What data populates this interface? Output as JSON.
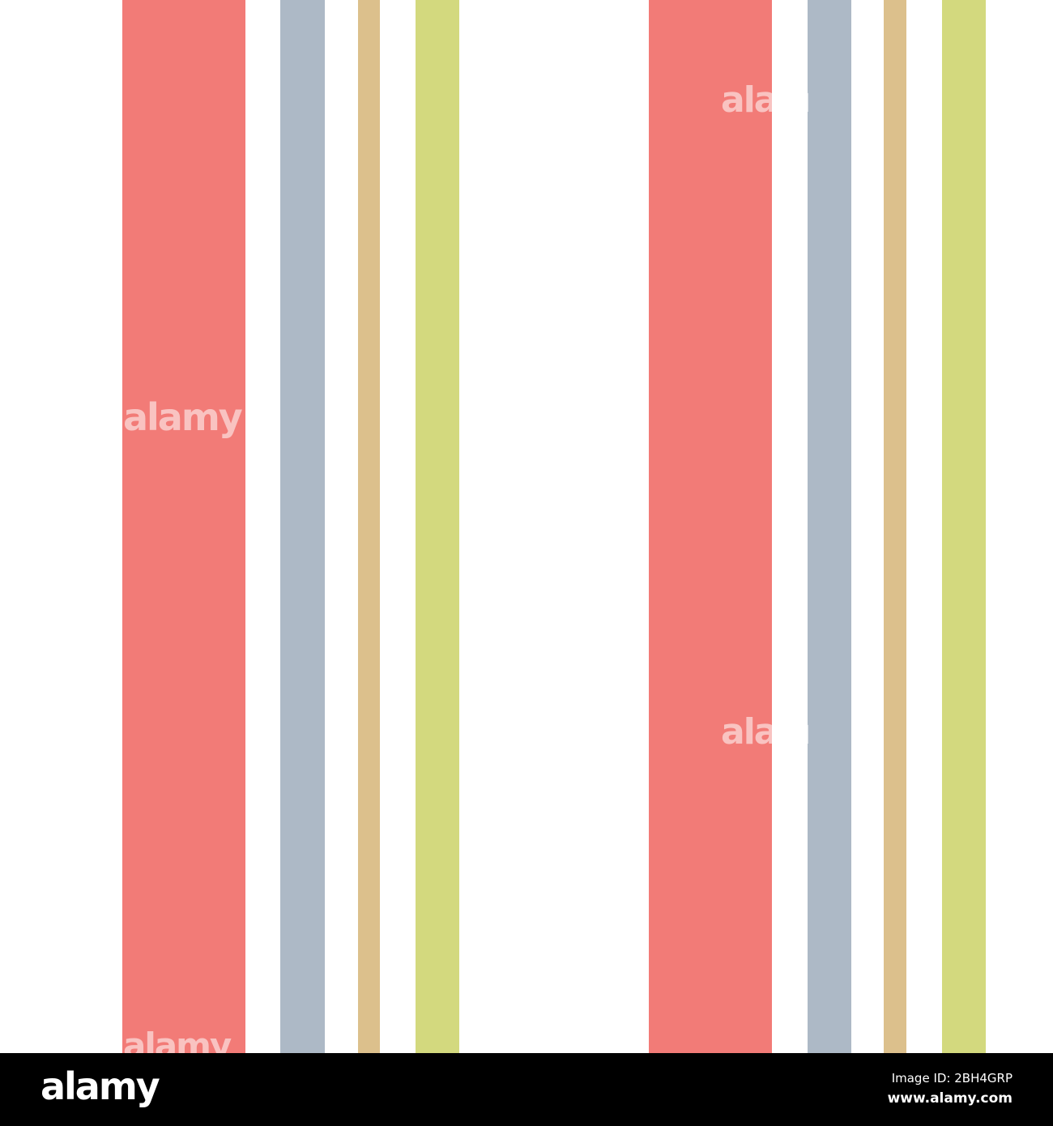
{
  "pattern": {
    "background": "#ffffff",
    "stripe_colors": {
      "coral": "#f27b77",
      "slate_blue": "#adb9c6",
      "tan": "#dcc08c",
      "lime": "#d3d97e"
    },
    "repeats": 2
  },
  "watermark": {
    "text": "alamy"
  },
  "footer": {
    "logo": "alamy",
    "image_id": "Image ID: 2BH4GRP",
    "website": "www.alamy.com"
  }
}
